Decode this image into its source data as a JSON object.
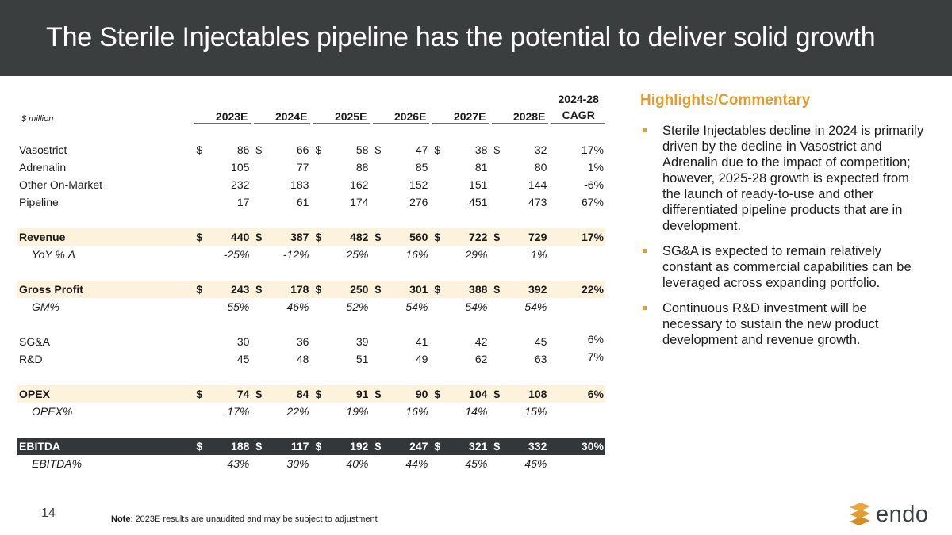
{
  "title": "The Sterile Injectables pipeline has the potential to deliver solid growth",
  "table": {
    "unit_label": "$ million",
    "years": [
      "2023E",
      "2024E",
      "2025E",
      "2026E",
      "2027E",
      "2028E"
    ],
    "cagr_header": [
      "2024-28",
      "CAGR"
    ],
    "currency": "$",
    "rows": {
      "vasostrict": {
        "label": "Vasostrict",
        "values": [
          "86",
          "66",
          "58",
          "47",
          "38",
          "32"
        ],
        "cagr": "-17%"
      },
      "adrenalin": {
        "label": "Adrenalin",
        "values": [
          "105",
          "77",
          "88",
          "85",
          "81",
          "80"
        ],
        "cagr": "1%"
      },
      "other": {
        "label": "Other On-Market",
        "values": [
          "232",
          "183",
          "162",
          "152",
          "151",
          "144"
        ],
        "cagr": "-6%"
      },
      "pipeline": {
        "label": "Pipeline",
        "values": [
          "17",
          "61",
          "174",
          "276",
          "451",
          "473"
        ],
        "cagr": "67%"
      },
      "revenue": {
        "label": "Revenue",
        "values": [
          "440",
          "387",
          "482",
          "560",
          "722",
          "729"
        ],
        "cagr": "17%"
      },
      "yoy": {
        "label": "YoY % Δ",
        "values": [
          "-25%",
          "-12%",
          "25%",
          "16%",
          "29%",
          "1%"
        ]
      },
      "gross_profit": {
        "label": "Gross Profit",
        "values": [
          "243",
          "178",
          "250",
          "301",
          "388",
          "392"
        ],
        "cagr": "22%"
      },
      "gm": {
        "label": "GM%",
        "values": [
          "55%",
          "46%",
          "52%",
          "54%",
          "54%",
          "54%"
        ]
      },
      "sga": {
        "label": "SG&A",
        "values": [
          "30",
          "36",
          "39",
          "41",
          "42",
          "45"
        ],
        "cagr": "6%"
      },
      "rd": {
        "label": "R&D",
        "values": [
          "45",
          "48",
          "51",
          "49",
          "62",
          "63"
        ],
        "cagr": "7%"
      },
      "opex": {
        "label": "OPEX",
        "values": [
          "74",
          "84",
          "91",
          "90",
          "104",
          "108"
        ],
        "cagr": "6%"
      },
      "opex_pct": {
        "label": "OPEX%",
        "values": [
          "17%",
          "22%",
          "19%",
          "16%",
          "14%",
          "15%"
        ]
      },
      "ebitda": {
        "label": "EBITDA",
        "values": [
          "188",
          "117",
          "192",
          "247",
          "321",
          "332"
        ],
        "cagr": "30%"
      },
      "ebitda_pct": {
        "label": "EBITDA%",
        "values": [
          "43%",
          "30%",
          "40%",
          "44%",
          "45%",
          "46%"
        ]
      }
    }
  },
  "commentary": {
    "heading": "Highlights/Commentary",
    "bullets": [
      "Sterile Injectables decline in 2024 is primarily driven by the decline in Vasostrict and Adrenalin due to the impact of competition; however, 2025-28 growth is expected from the launch of ready-to-use and other differentiated pipeline products that are in development.",
      "SG&A is expected to remain relatively constant as commercial capabilities can be leveraged across expanding portfolio.",
      "Continuous R&D investment will be necessary to sustain the new product development and revenue growth."
    ]
  },
  "footer": {
    "page_number": "14",
    "note_label": "Note",
    "note_text": ": 2023E results are unaudited and may be subject to adjustment",
    "logo_text": "endo"
  },
  "colors": {
    "header_bg": "#3b3e3f",
    "accent": "#e49d2c",
    "highlight_row": "#fdf3dd",
    "dark_row": "#33373a"
  }
}
